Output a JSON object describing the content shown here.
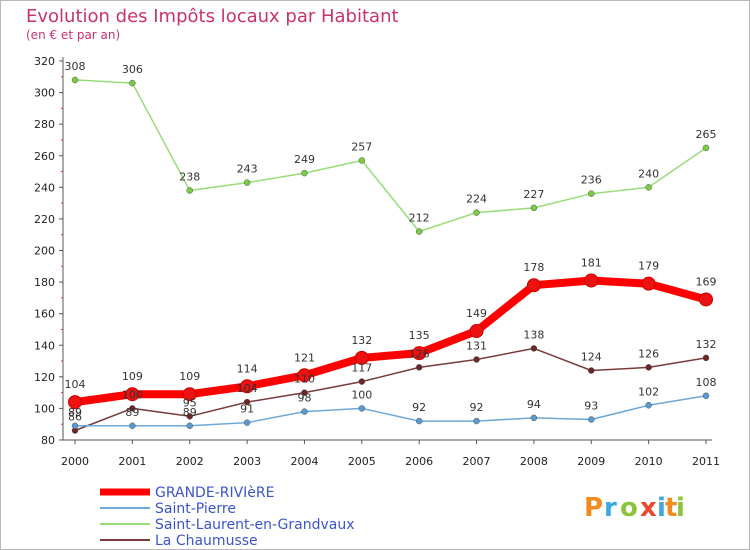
{
  "chart_data": {
    "type": "line",
    "title": "Evolution des Impôts locaux par Habitant",
    "subtitle": "(en € et par an)",
    "xlabel": "",
    "ylabel": "",
    "x": [
      "2000",
      "2001",
      "2002",
      "2003",
      "2004",
      "2005",
      "2006",
      "2007",
      "2008",
      "2009",
      "2010",
      "2011"
    ],
    "ylim": [
      80,
      320
    ],
    "yticks": [
      80,
      100,
      120,
      140,
      160,
      180,
      200,
      220,
      240,
      260,
      280,
      300,
      320
    ],
    "grid": false,
    "legend_position": "bottom-left",
    "series": [
      {
        "name": "GRANDE-RIVIèRE",
        "color": "#ff0000",
        "marker_color": "#ee1111",
        "values": [
          104,
          109,
          109,
          114,
          121,
          132,
          135,
          149,
          178,
          181,
          179,
          169
        ]
      },
      {
        "name": "Saint-Pierre",
        "color": "#6ea8d8",
        "marker_color": "#5a9ad0",
        "values": [
          89,
          89,
          89,
          91,
          98,
          100,
          92,
          92,
          94,
          93,
          102,
          108
        ]
      },
      {
        "name": "Saint-Laurent-en-Grandvaux",
        "color": "#99dd77",
        "marker_color": "#77cc44",
        "values": [
          308,
          306,
          238,
          243,
          249,
          257,
          212,
          224,
          227,
          236,
          240,
          265
        ]
      },
      {
        "name": "La Chaumusse",
        "color": "#7a3b3b",
        "marker_color": "#6b2525",
        "values": [
          86,
          100,
          95,
          104,
          110,
          117,
          126,
          131,
          138,
          124,
          126,
          132
        ]
      }
    ]
  },
  "brand": {
    "letters": [
      {
        "ch": "P",
        "color": "#f08c1e"
      },
      {
        "ch": "r",
        "color": "#3da8e0"
      },
      {
        "ch": "o",
        "color": "#8bc43a"
      },
      {
        "ch": "x",
        "color": "#e84a2e"
      },
      {
        "ch": "i",
        "color": "#3da8e0"
      },
      {
        "ch": "t",
        "color": "#f08c1e"
      },
      {
        "ch": "i",
        "color": "#8bc43a"
      }
    ]
  }
}
